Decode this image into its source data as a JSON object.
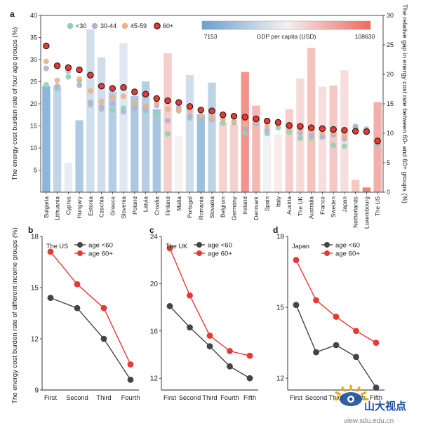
{
  "panel_a": {
    "label": "a",
    "ylabel_left": "The energy cost burden rate of four age groups (%)",
    "ylabel_right": "The relative gap in energy cost rate between 60- and 60+ groups (%)",
    "legend": [
      "<30",
      "30-44",
      "45-59",
      "60+"
    ],
    "colorbar": {
      "min_label": "7153",
      "max_label": "108630",
      "title": "GDP per capita (USD)"
    }
  },
  "panel_b": {
    "label": "b",
    "title": "The US"
  },
  "panel_c": {
    "label": "c",
    "title": "The UK"
  },
  "panel_d": {
    "label": "d",
    "title": "Japan"
  },
  "shared_ylabel_bottom": "The energy cost burden rate of different income groups (%)",
  "watermark": {
    "brand": "山大视点",
    "url": "view.sdu.edu.cn"
  },
  "colors": {
    "lt30": "#8ed1b8",
    "a30_44": "#b5b0d8",
    "a45_59": "#e7b48a",
    "a60p": "#e53935",
    "bar_low": "#6a9fcf",
    "bar_high": "#ef6a60",
    "line_lt60": "#444444",
    "line_60p": "#e53935"
  },
  "chart_data": [
    {
      "type": "bar",
      "panel": "a",
      "categories": [
        "Bulgaria",
        "Lithuania",
        "Cyprus",
        "Hungary",
        "Estonia",
        "Czechia",
        "Greece",
        "Slovenia",
        "Poland",
        "Latvia",
        "Croatia",
        "Finland",
        "Malta",
        "Portugal",
        "Romania",
        "Slovakia",
        "Belgium",
        "Germany",
        "Ireland",
        "Denmark",
        "Spain",
        "Italy",
        "Austria",
        "The UK",
        "Australia",
        "France",
        "Sweden",
        "Japan",
        "Netherlands",
        "Luxembourg",
        "The US"
      ],
      "ylim_left": [
        0,
        40
      ],
      "ylim_right": [
        0,
        30
      ],
      "yticks_left": [
        5,
        10,
        15,
        20,
        25,
        30,
        35,
        40
      ],
      "yticks_right": [
        0,
        5,
        10,
        15,
        20,
        25,
        30
      ],
      "series": [
        {
          "name": "<30",
          "values": [
            24.3,
            23.4,
            26.1,
            25.2,
            19.8,
            18.8,
            18.6,
            19.0,
            19.4,
            18.4,
            17.8,
            13.2,
            18.4,
            16.8,
            16.4,
            16.4,
            15.6,
            15.8,
            13.4,
            15.6,
            13.3,
            14.6,
            13.6,
            12.2,
            12.3,
            12.5,
            10.6,
            10.4,
            14.9,
            14.0,
            10.9
          ]
        },
        {
          "name": "30-44",
          "values": [
            28.0,
            24.0,
            27.4,
            24.2,
            20.3,
            19.3,
            20.0,
            18.2,
            18.9,
            18.9,
            19.6,
            16.2,
            19.2,
            17.2,
            16.8,
            16.6,
            16.4,
            15.7,
            14.8,
            15.6,
            14.1,
            15.6,
            14.8,
            13.4,
            13.0,
            12.6,
            13.0,
            12.1,
            14.7,
            14.3,
            11.4
          ]
        },
        {
          "name": "45-59",
          "values": [
            29.6,
            25.3,
            27.9,
            25.6,
            22.9,
            20.5,
            21.4,
            21.7,
            20.2,
            19.4,
            20.1,
            18.8,
            18.6,
            18.4,
            17.3,
            16.9,
            16.4,
            15.9,
            15.4,
            16.1,
            14.9,
            15.3,
            14.4,
            14.3,
            13.9,
            13.4,
            13.5,
            12.7,
            14.0,
            13.9,
            12.1
          ]
        },
        {
          "name": "60+",
          "values": [
            33.1,
            28.6,
            28.2,
            27.7,
            26.5,
            24.0,
            23.5,
            23.7,
            22.7,
            22.2,
            21.2,
            20.7,
            20.3,
            19.4,
            18.6,
            18.4,
            17.5,
            17.2,
            17.0,
            16.6,
            16.1,
            15.8,
            15.1,
            14.9,
            14.6,
            14.4,
            14.2,
            14.0,
            13.8,
            13.7,
            11.6
          ]
        }
      ],
      "bar_series": {
        "name": "relative gap",
        "axis": "right",
        "values": [
          18.0,
          18.1,
          5.0,
          12.2,
          27.6,
          22.9,
          17.1,
          25.3,
          16.3,
          18.8,
          14.1,
          23.6,
          9.5,
          19.9,
          13.2,
          18.6,
          11.9,
          11.5,
          20.4,
          14.7,
          10.9,
          9.8,
          14.1,
          19.3,
          24.5,
          17.9,
          18.1,
          20.7,
          2.1,
          0.8,
          15.3
        ]
      },
      "gdp_per_capita": [
        9800,
        20200,
        28000,
        16500,
        23300,
        23100,
        17700,
        26000,
        15600,
        17900,
        14900,
        48700,
        30200,
        23100,
        12900,
        19300,
        46000,
        46500,
        80000,
        59900,
        29600,
        33200,
        48600,
        42300,
        55000,
        40300,
        51600,
        40200,
        52400,
        108630,
        65100
      ]
    },
    {
      "type": "line",
      "panel": "b",
      "title": "The US",
      "categories": [
        "First",
        "Second",
        "Third",
        "Fourth"
      ],
      "ylim": [
        9,
        18
      ],
      "yticks": [
        9,
        12,
        15,
        18
      ],
      "series": [
        {
          "name": "age <60",
          "values": [
            14.4,
            13.8,
            12.0,
            9.6
          ]
        },
        {
          "name": "age 60+",
          "values": [
            17.1,
            15.2,
            13.8,
            10.5
          ]
        }
      ]
    },
    {
      "type": "line",
      "panel": "c",
      "title": "The UK",
      "categories": [
        "First",
        "Second",
        "Third",
        "Fourth",
        "Fifth"
      ],
      "ylim": [
        11,
        24
      ],
      "yticks": [
        12,
        16,
        20,
        24
      ],
      "series": [
        {
          "name": "age <60",
          "values": [
            18.1,
            16.3,
            14.7,
            13.0,
            12.0
          ]
        },
        {
          "name": "age 60+",
          "values": [
            23.0,
            19.0,
            15.6,
            14.3,
            13.9
          ]
        }
      ]
    },
    {
      "type": "line",
      "panel": "d",
      "title": "Japan",
      "categories": [
        "First",
        "Second",
        "Third",
        "Fourth",
        "Fifth"
      ],
      "ylim": [
        11.5,
        18
      ],
      "yticks": [
        12,
        15,
        18
      ],
      "series": [
        {
          "name": "age <60",
          "values": [
            15.1,
            13.1,
            13.4,
            12.9,
            11.6
          ]
        },
        {
          "name": "age 60+",
          "values": [
            17.0,
            15.3,
            14.6,
            14.0,
            13.5
          ]
        }
      ]
    }
  ]
}
